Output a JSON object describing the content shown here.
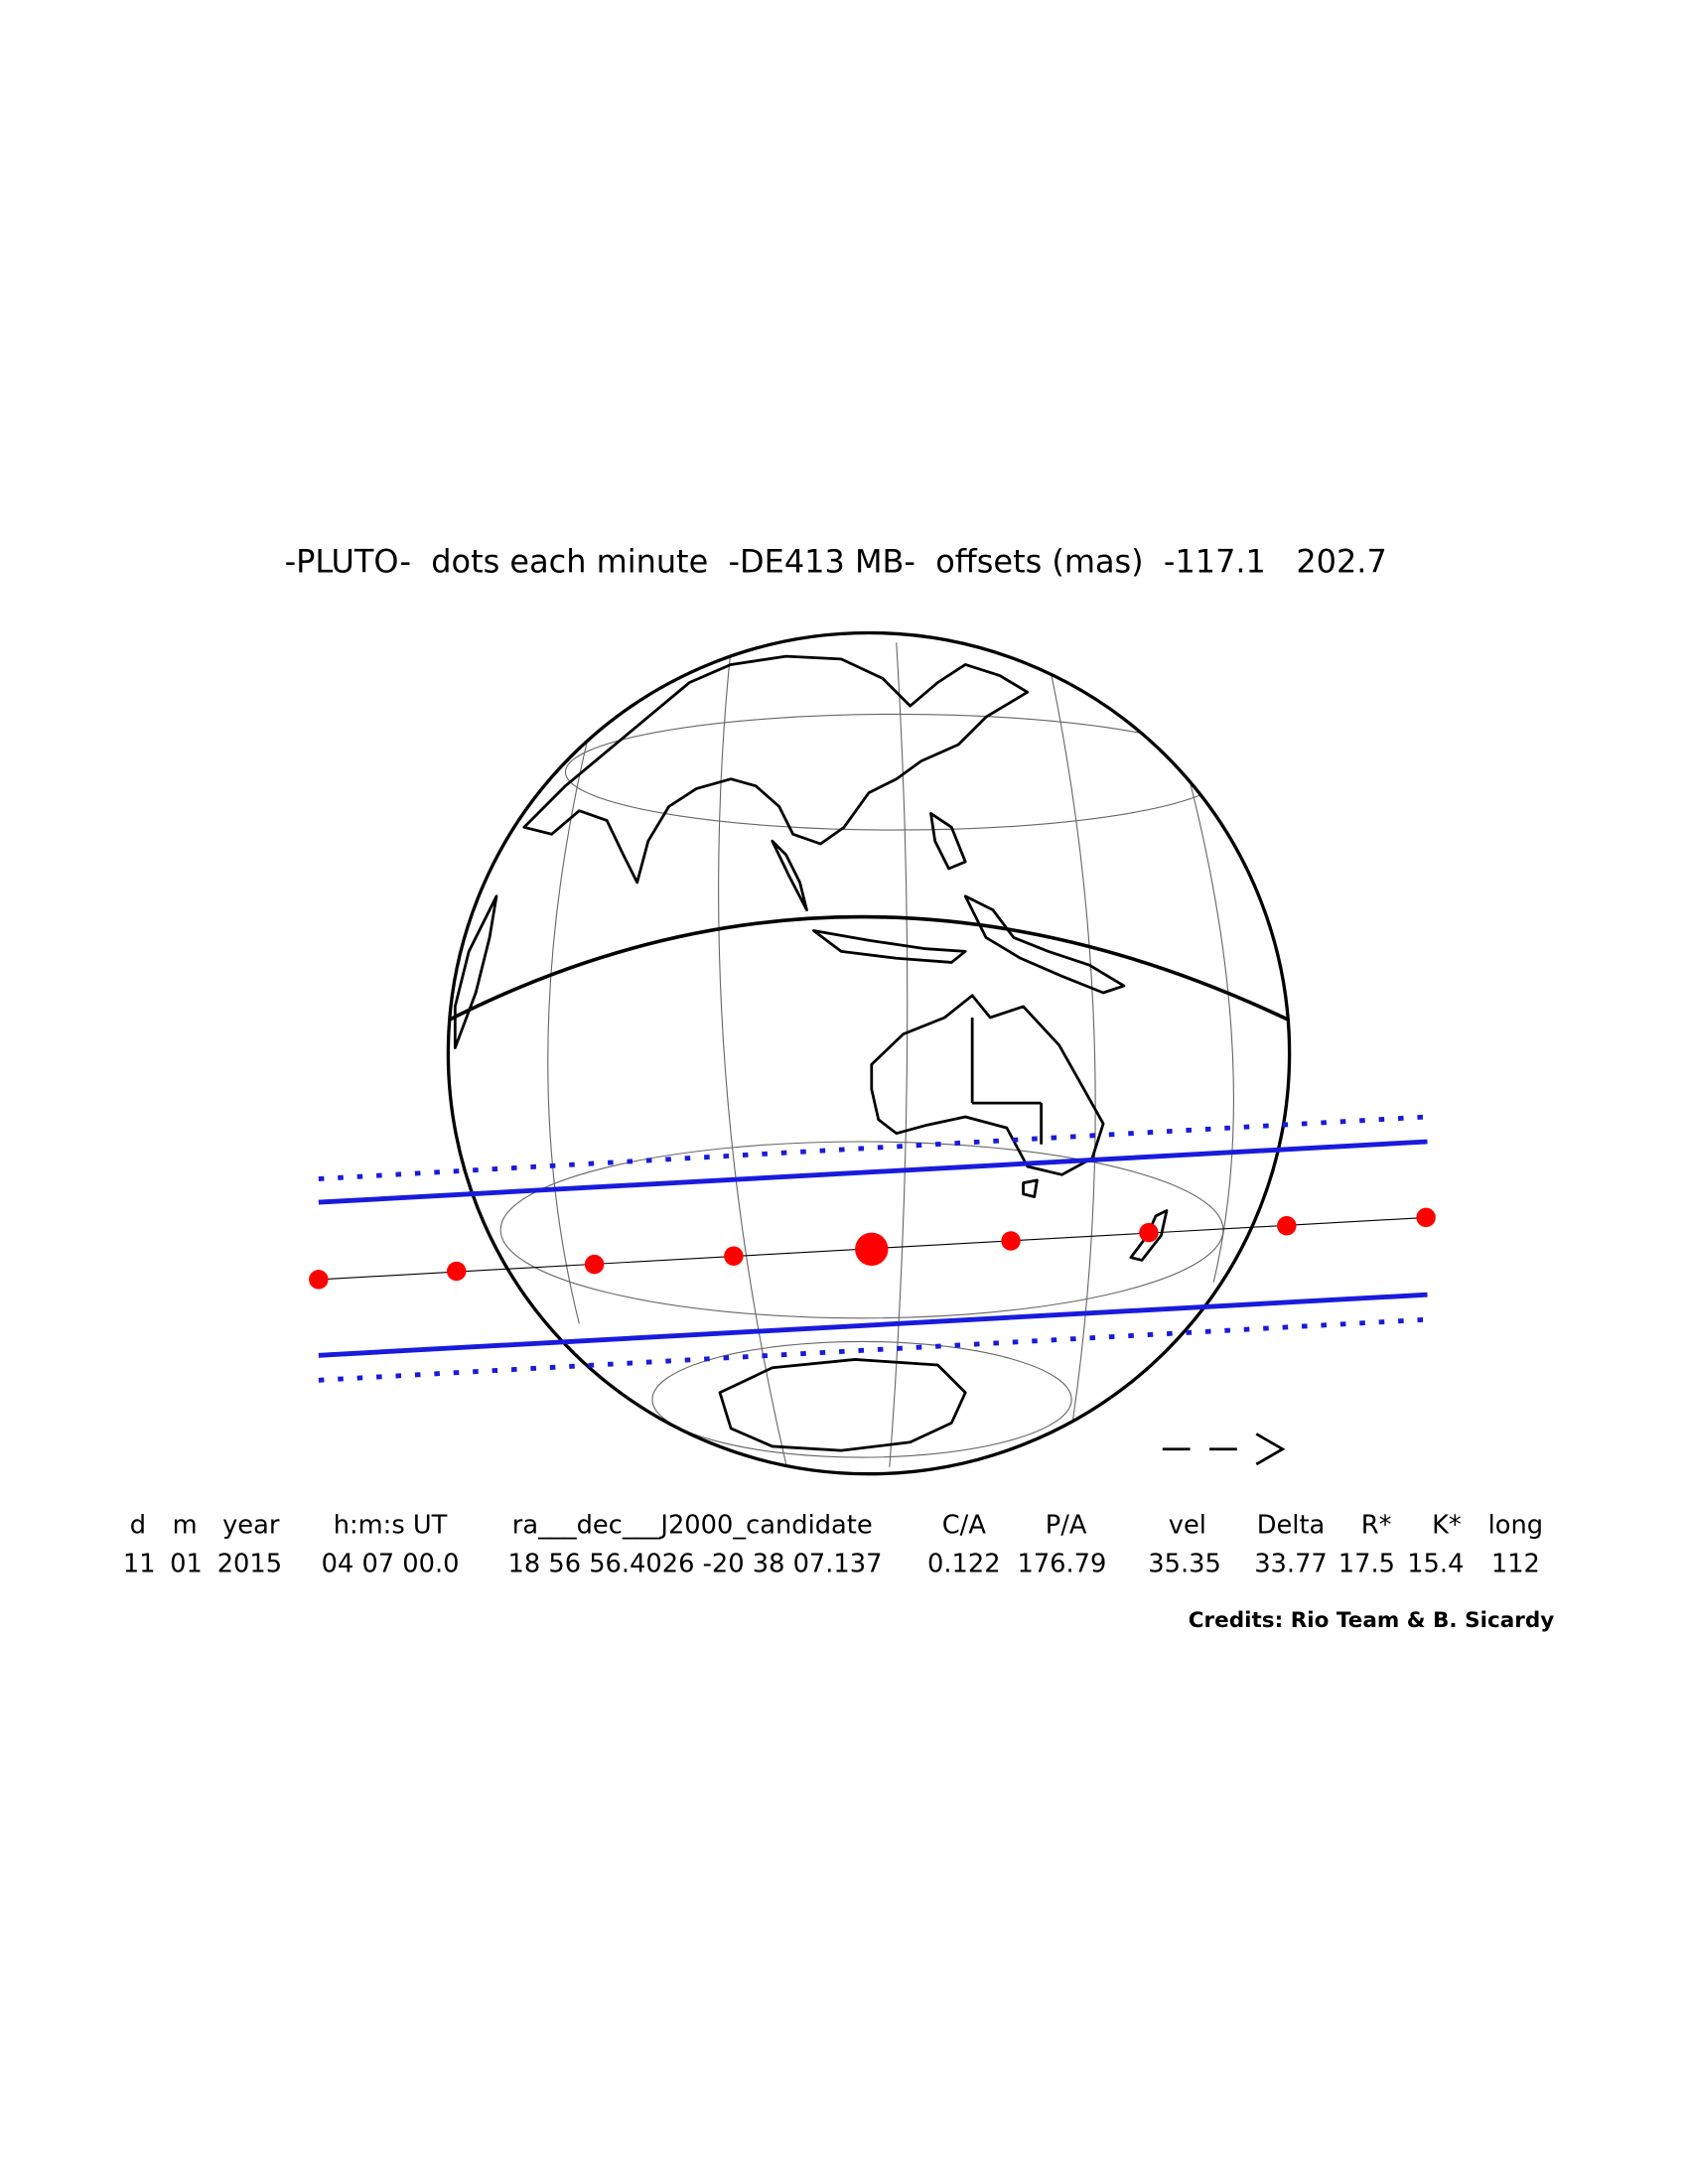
{
  "title": "-PLUTO-  dots each minute  -DE413 MB-  offsets (mas)  -117.1   202.7",
  "table": {
    "headers": [
      "d",
      "m",
      "year",
      "h:m:s UT",
      "ra___dec___J2000_candidate",
      "C/A",
      "P/A",
      "vel",
      "Delta",
      "R*",
      "K*",
      "long"
    ],
    "values": [
      "11",
      "01",
      "2015",
      "04 07 00.0",
      "18 56 56.4026 -20 38 07.137",
      "0.122",
      "176.79",
      "35.35",
      "33.77",
      "17.5",
      "15.4",
      "112"
    ]
  },
  "credits": "Credits: Rio Team & B. Sicardy"
}
